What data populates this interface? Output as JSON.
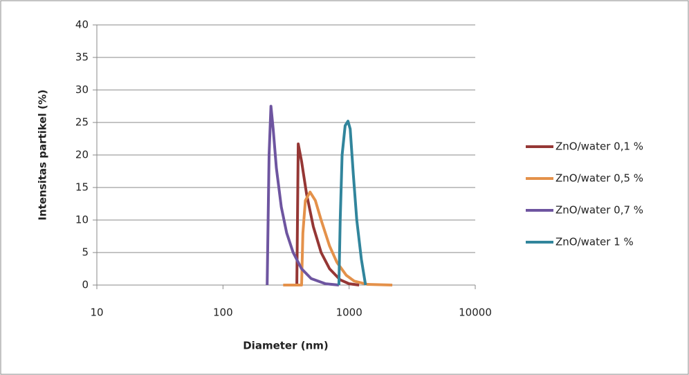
{
  "chart_data": {
    "type": "line",
    "x_label": "Diameter (nm)",
    "y_label": "Intensitas partikel (%)",
    "xlim": [
      10,
      10000
    ],
    "xticks": [
      10,
      100,
      1000,
      10000
    ],
    "xscale": "log",
    "ylim": [
      0,
      40
    ],
    "yticks": [
      0,
      5,
      10,
      15,
      20,
      25,
      30,
      35,
      40
    ],
    "grid": true,
    "legend": "right",
    "series": [
      {
        "name": "ZnO/water 0,1 %",
        "color": "#953735",
        "x": [
          370,
          385,
          395,
          420,
          460,
          520,
          600,
          700,
          850,
          1000,
          1200
        ],
        "values": [
          0,
          0,
          21.7,
          19,
          14,
          9,
          5,
          2.5,
          0.8,
          0.2,
          0
        ]
      },
      {
        "name": "ZnO/water 0,5 %",
        "color": "#e4914a",
        "x": [
          300,
          420,
          430,
          450,
          490,
          540,
          600,
          700,
          800,
          950,
          1100,
          1400,
          2200
        ],
        "values": [
          0,
          0,
          8,
          13,
          14.3,
          13,
          10,
          6,
          3.5,
          1.5,
          0.6,
          0.1,
          0
        ]
      },
      {
        "name": "ZnO/water 0,7 %",
        "color": "#6e55a0",
        "x": [
          224,
          232,
          240,
          250,
          265,
          290,
          320,
          360,
          420,
          500,
          650,
          830
        ],
        "values": [
          0,
          20,
          27.5,
          24,
          18,
          12,
          8,
          5,
          2.5,
          1,
          0.2,
          0
        ]
      },
      {
        "name": "ZnO/water 1 %",
        "color": "#31859c",
        "x": [
          830,
          850,
          880,
          930,
          980,
          1020,
          1080,
          1150,
          1250,
          1350
        ],
        "values": [
          0,
          10,
          20,
          24.5,
          25.2,
          24,
          17,
          10,
          4,
          0
        ]
      }
    ]
  }
}
